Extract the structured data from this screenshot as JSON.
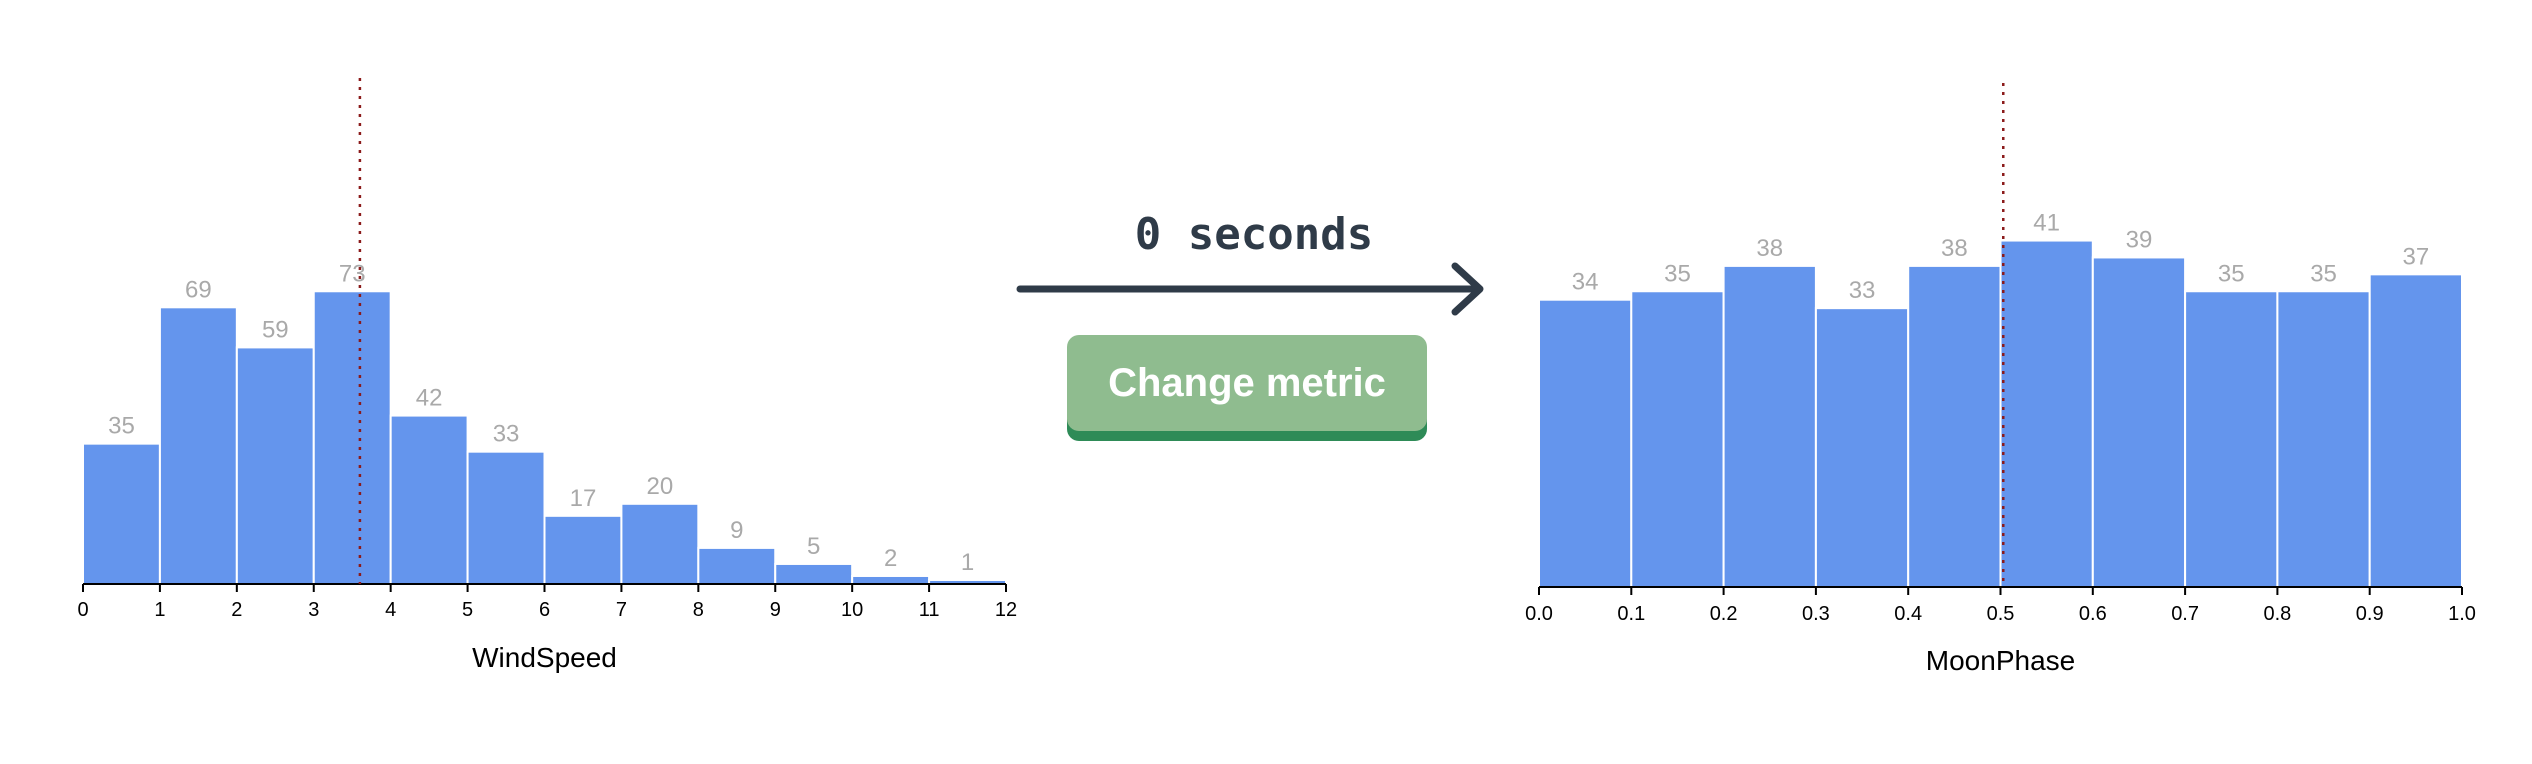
{
  "chart_data": [
    {
      "type": "bar",
      "xlabel": "WindSpeed",
      "bin_edges": [
        0,
        1,
        2,
        3,
        4,
        5,
        6,
        7,
        8,
        9,
        10,
        11,
        12
      ],
      "values": [
        35,
        69,
        59,
        73,
        42,
        33,
        17,
        20,
        9,
        5,
        2,
        1
      ],
      "tick_labels": [
        "0",
        "1",
        "2",
        "3",
        "4",
        "5",
        "6",
        "7",
        "8",
        "9",
        "10",
        "11",
        "12"
      ],
      "xlim": [
        0,
        12
      ],
      "ylim": [
        0,
        78
      ],
      "mean_marker": 3.6,
      "bar_color": "#6495ed",
      "marker_color": "#8b1a1a"
    },
    {
      "type": "bar",
      "xlabel": "MoonPhase",
      "bin_edges": [
        0.0,
        0.1,
        0.2,
        0.3,
        0.4,
        0.5,
        0.6,
        0.7,
        0.8,
        0.9,
        1.0
      ],
      "values": [
        34,
        35,
        38,
        33,
        38,
        41,
        39,
        35,
        35,
        37
      ],
      "tick_labels": [
        "0.0",
        "0.1",
        "0.2",
        "0.3",
        "0.4",
        "0.5",
        "0.6",
        "0.7",
        "0.8",
        "0.9",
        "1.0"
      ],
      "xlim": [
        0.0,
        1.0
      ],
      "ylim": [
        0,
        43
      ],
      "mean_marker": 0.503,
      "bar_color": "#6495ed",
      "marker_color": "#8b1a1a"
    }
  ],
  "timer": {
    "label": "0 seconds"
  },
  "button": {
    "label": "Change metric",
    "color": "#8fbc8f",
    "shadow_color": "#2e8b57"
  },
  "arrow": {
    "color": "#2f3b48"
  }
}
